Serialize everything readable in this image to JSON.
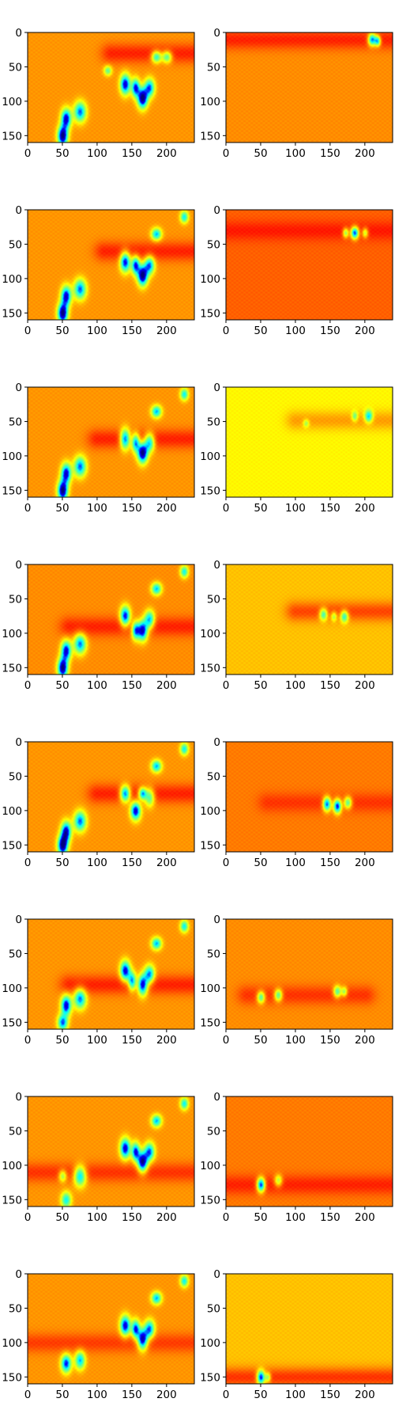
{
  "figure": {
    "description_grid": "8 rows x 2 columns of heatmap subplots (jet colormap)"
  },
  "chart_data": {
    "type": "heatmap",
    "layout": {
      "rows": 8,
      "cols": 2
    },
    "colormap": "jet",
    "colors": {
      "jet_stops": [
        "#00007f",
        "#0000ff",
        "#00ffff",
        "#7dff7a",
        "#ffff00",
        "#ff8000",
        "#ff0000",
        "#7f0000"
      ],
      "axis": "#000000",
      "background": "#ffffff"
    },
    "image_shape": {
      "width": 240,
      "height": 160
    },
    "xlim": [
      0,
      240
    ],
    "ylim": [
      160,
      0
    ],
    "x_ticks": [
      0,
      50,
      100,
      150,
      200
    ],
    "y_ticks": [
      0,
      50,
      100,
      150
    ],
    "x_tick_labels": [
      "0",
      "50",
      "100",
      "150",
      "200"
    ],
    "y_tick_labels": [
      "0",
      "50",
      "100",
      "150"
    ],
    "panels": [
      {
        "row": 0,
        "col": 0,
        "background_value": 0.69,
        "band": {
          "center_y": 30,
          "x_from": 120,
          "x_to": 240,
          "value": 0.82
        },
        "blobs": [
          [
            55,
            125,
            5,
            10,
            -0.6
          ],
          [
            50,
            150,
            5,
            10,
            -0.7
          ],
          [
            75,
            115,
            6,
            10,
            -0.5
          ],
          [
            140,
            75,
            5,
            10,
            -0.6
          ],
          [
            155,
            80,
            4,
            9,
            -0.55
          ],
          [
            165,
            95,
            5,
            10,
            -0.7
          ],
          [
            175,
            80,
            5,
            9,
            -0.5
          ],
          [
            185,
            35,
            5,
            6,
            -0.45
          ],
          [
            200,
            35,
            5,
            6,
            -0.4
          ],
          [
            115,
            55,
            4,
            5,
            -0.3
          ]
        ]
      },
      {
        "row": 0,
        "col": 1,
        "background_value": 0.7,
        "band": {
          "center_y": 10,
          "x_from": 0,
          "x_to": 240,
          "value": 0.82
        },
        "blobs": [
          [
            210,
            10,
            4,
            6,
            -0.6
          ],
          [
            218,
            12,
            3,
            5,
            -0.5
          ]
        ]
      },
      {
        "row": 1,
        "col": 0,
        "background_value": 0.69,
        "band": {
          "center_y": 60,
          "x_from": 110,
          "x_to": 240,
          "value": 0.82
        },
        "blobs": [
          [
            55,
            125,
            5,
            10,
            -0.6
          ],
          [
            50,
            150,
            5,
            10,
            -0.7
          ],
          [
            75,
            115,
            6,
            10,
            -0.5
          ],
          [
            140,
            75,
            5,
            10,
            -0.6
          ],
          [
            155,
            80,
            4,
            9,
            -0.55
          ],
          [
            165,
            95,
            5,
            10,
            -0.7
          ],
          [
            175,
            80,
            5,
            9,
            -0.5
          ],
          [
            185,
            35,
            5,
            6,
            -0.45
          ],
          [
            225,
            10,
            4,
            6,
            -0.4
          ]
        ]
      },
      {
        "row": 1,
        "col": 1,
        "background_value": 0.75,
        "band": {
          "center_y": 30,
          "x_from": 0,
          "x_to": 240,
          "value": 0.83
        },
        "blobs": [
          [
            185,
            33,
            4,
            6,
            -0.65
          ],
          [
            172,
            33,
            3,
            5,
            -0.35
          ],
          [
            200,
            33,
            3,
            5,
            -0.3
          ]
        ]
      },
      {
        "row": 2,
        "col": 0,
        "background_value": 0.69,
        "band": {
          "center_y": 75,
          "x_from": 100,
          "x_to": 240,
          "value": 0.82
        },
        "blobs": [
          [
            55,
            125,
            5,
            10,
            -0.6
          ],
          [
            50,
            150,
            5,
            10,
            -0.7
          ],
          [
            75,
            115,
            6,
            10,
            -0.5
          ],
          [
            140,
            75,
            5,
            10,
            -0.6
          ],
          [
            155,
            80,
            4,
            9,
            -0.55
          ],
          [
            165,
            95,
            5,
            10,
            -0.7
          ],
          [
            175,
            80,
            5,
            9,
            -0.5
          ],
          [
            185,
            35,
            5,
            6,
            -0.45
          ],
          [
            225,
            10,
            4,
            6,
            -0.4
          ]
        ]
      },
      {
        "row": 2,
        "col": 1,
        "background_value": 0.58,
        "band": {
          "center_y": 48,
          "x_from": 100,
          "x_to": 240,
          "value": 0.68
        },
        "blobs": [
          [
            205,
            42,
            4,
            6,
            -0.4
          ],
          [
            185,
            42,
            3,
            5,
            -0.25
          ],
          [
            115,
            52,
            3,
            4,
            -0.2
          ]
        ]
      },
      {
        "row": 3,
        "col": 0,
        "background_value": 0.7,
        "band": {
          "center_y": 90,
          "x_from": 60,
          "x_to": 240,
          "value": 0.82
        },
        "blobs": [
          [
            55,
            125,
            5,
            10,
            -0.6
          ],
          [
            50,
            150,
            5,
            10,
            -0.7
          ],
          [
            75,
            115,
            6,
            10,
            -0.5
          ],
          [
            140,
            75,
            5,
            10,
            -0.6
          ],
          [
            155,
            95,
            4,
            9,
            -0.55
          ],
          [
            165,
            95,
            5,
            10,
            -0.7
          ],
          [
            175,
            80,
            5,
            9,
            -0.5
          ],
          [
            185,
            35,
            5,
            6,
            -0.45
          ],
          [
            225,
            10,
            4,
            6,
            -0.4
          ]
        ]
      },
      {
        "row": 3,
        "col": 1,
        "background_value": 0.64,
        "band": {
          "center_y": 68,
          "x_from": 100,
          "x_to": 240,
          "value": 0.78
        },
        "blobs": [
          [
            140,
            72,
            4,
            6,
            -0.4
          ],
          [
            170,
            75,
            4,
            6,
            -0.4
          ],
          [
            155,
            75,
            3,
            5,
            -0.25
          ]
        ]
      },
      {
        "row": 4,
        "col": 0,
        "background_value": 0.69,
        "band": {
          "center_y": 75,
          "x_from": 100,
          "x_to": 240,
          "value": 0.82
        },
        "blobs": [
          [
            55,
            130,
            5,
            10,
            -0.6
          ],
          [
            50,
            150,
            5,
            10,
            -0.7
          ],
          [
            75,
            115,
            6,
            10,
            -0.5
          ],
          [
            140,
            75,
            5,
            8,
            -0.6
          ],
          [
            165,
            75,
            4,
            6,
            -0.55
          ],
          [
            155,
            100,
            5,
            9,
            -0.6
          ],
          [
            175,
            80,
            5,
            9,
            -0.4
          ],
          [
            185,
            35,
            5,
            6,
            -0.45
          ],
          [
            225,
            10,
            4,
            6,
            -0.4
          ]
        ]
      },
      {
        "row": 4,
        "col": 1,
        "background_value": 0.72,
        "band": {
          "center_y": 88,
          "x_from": 60,
          "x_to": 240,
          "value": 0.8
        },
        "blobs": [
          [
            145,
            90,
            4,
            7,
            -0.6
          ],
          [
            160,
            93,
            4,
            7,
            -0.65
          ],
          [
            175,
            88,
            4,
            6,
            -0.4
          ]
        ]
      },
      {
        "row": 5,
        "col": 0,
        "background_value": 0.69,
        "band": {
          "center_y": 95,
          "x_from": 60,
          "x_to": 240,
          "value": 0.82
        },
        "blobs": [
          [
            55,
            125,
            5,
            10,
            -0.6
          ],
          [
            50,
            150,
            5,
            8,
            -0.5
          ],
          [
            75,
            115,
            6,
            10,
            -0.5
          ],
          [
            140,
            75,
            5,
            10,
            -0.6
          ],
          [
            150,
            90,
            4,
            9,
            -0.55
          ],
          [
            165,
            95,
            5,
            10,
            -0.7
          ],
          [
            175,
            80,
            5,
            9,
            -0.5
          ],
          [
            185,
            35,
            5,
            6,
            -0.45
          ],
          [
            225,
            10,
            4,
            6,
            -0.4
          ]
        ]
      },
      {
        "row": 5,
        "col": 1,
        "background_value": 0.7,
        "band": {
          "center_y": 110,
          "x_from": 30,
          "x_to": 200,
          "value": 0.8
        },
        "blobs": [
          [
            50,
            113,
            4,
            6,
            -0.4
          ],
          [
            75,
            110,
            4,
            6,
            -0.4
          ],
          [
            160,
            105,
            4,
            6,
            -0.4
          ],
          [
            170,
            105,
            3,
            5,
            -0.3
          ]
        ]
      },
      {
        "row": 6,
        "col": 0,
        "background_value": 0.69,
        "band": {
          "center_y": 110,
          "x_from": 0,
          "x_to": 240,
          "value": 0.8
        },
        "blobs": [
          [
            55,
            150,
            5,
            8,
            -0.4
          ],
          [
            50,
            115,
            4,
            6,
            -0.3
          ],
          [
            75,
            115,
            6,
            10,
            -0.5
          ],
          [
            140,
            75,
            5,
            10,
            -0.6
          ],
          [
            155,
            80,
            4,
            9,
            -0.55
          ],
          [
            165,
            95,
            5,
            10,
            -0.7
          ],
          [
            175,
            80,
            5,
            9,
            -0.5
          ],
          [
            185,
            35,
            5,
            6,
            -0.45
          ],
          [
            225,
            10,
            4,
            6,
            -0.4
          ]
        ]
      },
      {
        "row": 6,
        "col": 1,
        "background_value": 0.72,
        "band": {
          "center_y": 128,
          "x_from": 0,
          "x_to": 240,
          "value": 0.82
        },
        "blobs": [
          [
            50,
            128,
            4,
            7,
            -0.65
          ],
          [
            75,
            122,
            4,
            6,
            -0.3
          ]
        ]
      },
      {
        "row": 7,
        "col": 0,
        "background_value": 0.69,
        "band": {
          "center_y": 100,
          "x_from": 0,
          "x_to": 240,
          "value": 0.79
        },
        "blobs": [
          [
            55,
            130,
            5,
            9,
            -0.55
          ],
          [
            75,
            125,
            5,
            9,
            -0.45
          ],
          [
            140,
            75,
            5,
            10,
            -0.6
          ],
          [
            155,
            80,
            4,
            9,
            -0.55
          ],
          [
            165,
            95,
            5,
            10,
            -0.7
          ],
          [
            175,
            80,
            5,
            9,
            -0.5
          ],
          [
            185,
            35,
            5,
            6,
            -0.45
          ],
          [
            225,
            10,
            4,
            6,
            -0.4
          ]
        ]
      },
      {
        "row": 7,
        "col": 1,
        "background_value": 0.64,
        "band": {
          "center_y": 150,
          "x_from": 0,
          "x_to": 240,
          "value": 0.8
        },
        "blobs": [
          [
            50,
            150,
            4,
            7,
            -0.65
          ],
          [
            60,
            150,
            3,
            5,
            -0.3
          ]
        ]
      }
    ]
  }
}
